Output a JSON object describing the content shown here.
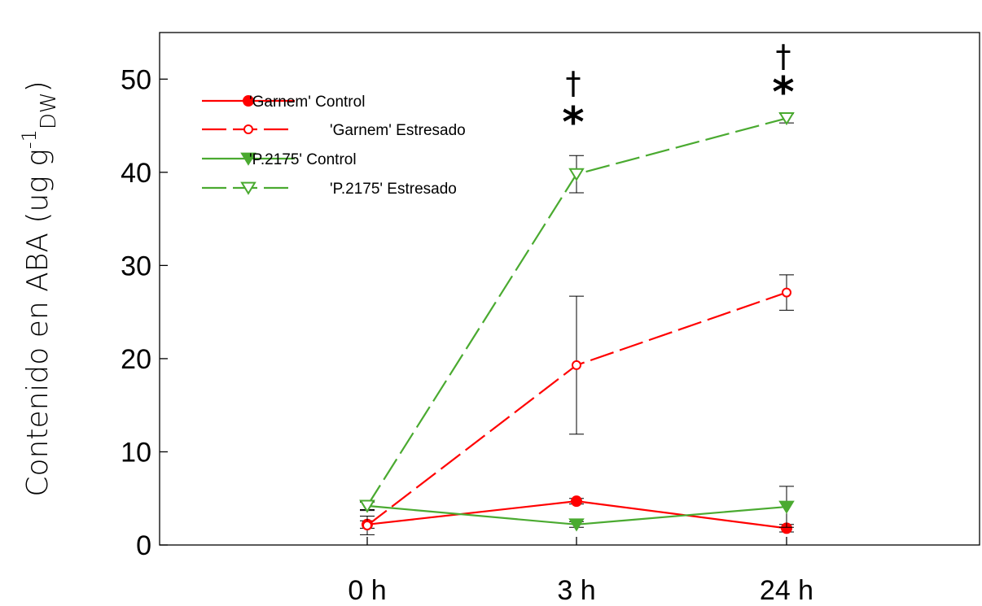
{
  "chart_data": {
    "type": "line",
    "categories": [
      "0 h",
      "3 h",
      "24 h"
    ],
    "ylabel": {
      "main": "Contenido en ABA (ug g",
      "sup": "-1",
      "sub": "DW",
      "close": ")"
    },
    "ylim": [
      0,
      55
    ],
    "yticks": [
      0,
      10,
      20,
      30,
      40,
      50
    ],
    "grid": false,
    "legend_position": "top-left",
    "series": [
      {
        "name": "'Garnem' Control",
        "color": "#ff0000",
        "marker": "circle-filled",
        "dash": "solid",
        "values": [
          2.2,
          4.7,
          1.8
        ],
        "errors": [
          0.4,
          0.3,
          0.4
        ]
      },
      {
        "name": "'Garnem' Estresado",
        "color": "#ff0000",
        "marker": "circle-open",
        "dash": "dashed",
        "values": [
          2.1,
          19.3,
          27.1
        ],
        "errors": [
          1.0,
          7.4,
          1.9
        ]
      },
      {
        "name": "'P.2175' Control",
        "color": "#4aaa30",
        "marker": "triangle-down-filled",
        "dash": "solid",
        "values": [
          4.2,
          2.2,
          4.1
        ],
        "errors": [
          0.4,
          0.3,
          2.2
        ]
      },
      {
        "name": "'P.2175' Estresado",
        "color": "#4aaa30",
        "marker": "triangle-down-open",
        "dash": "dashed",
        "values": [
          4.2,
          39.8,
          45.8
        ],
        "errors": [
          0.5,
          2.0,
          0.5
        ]
      }
    ],
    "annotations": [
      {
        "category": "3 h",
        "symbols": [
          "†",
          "*"
        ]
      },
      {
        "category": "24 h",
        "symbols": [
          "†",
          "*"
        ]
      }
    ]
  }
}
